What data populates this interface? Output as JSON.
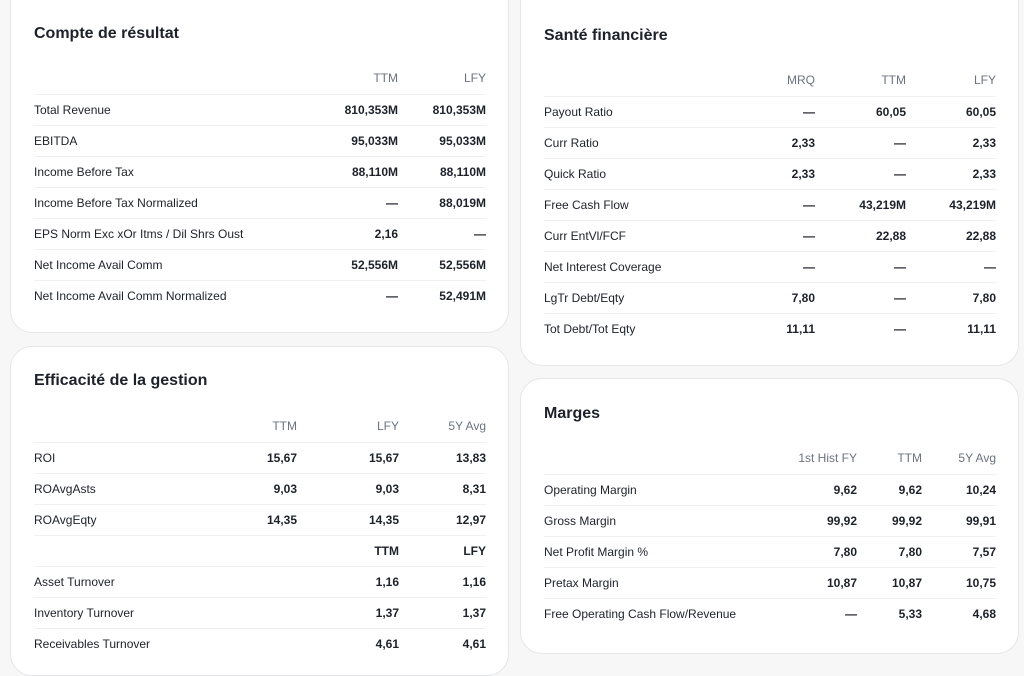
{
  "income": {
    "title": "Compte de résultat",
    "columns": [
      "TTM",
      "LFY"
    ],
    "rows": [
      {
        "label": "Total Revenue",
        "values": [
          "810,353M",
          "810,353M"
        ]
      },
      {
        "label": "EBITDA",
        "values": [
          "95,033M",
          "95,033M"
        ]
      },
      {
        "label": "Income Before Tax",
        "values": [
          "88,110M",
          "88,110M"
        ]
      },
      {
        "label": "Income Before Tax Normalized",
        "values": [
          "—",
          "88,019M"
        ]
      },
      {
        "label": "EPS Norm Exc xOr Itms / Dil Shrs Oust",
        "values": [
          "2,16",
          "—"
        ]
      },
      {
        "label": "Net Income Avail Comm",
        "values": [
          "52,556M",
          "52,556M"
        ]
      },
      {
        "label": "Net Income Avail Comm Normalized",
        "values": [
          "—",
          "52,491M"
        ]
      }
    ]
  },
  "health": {
    "title": "Santé financière",
    "columns": [
      "MRQ",
      "TTM",
      "LFY"
    ],
    "rows": [
      {
        "label": "Payout Ratio",
        "values": [
          "—",
          "60,05",
          "60,05"
        ]
      },
      {
        "label": "Curr Ratio",
        "values": [
          "2,33",
          "—",
          "2,33"
        ]
      },
      {
        "label": "Quick Ratio",
        "values": [
          "2,33",
          "—",
          "2,33"
        ]
      },
      {
        "label": "Free Cash Flow",
        "values": [
          "—",
          "43,219M",
          "43,219M"
        ]
      },
      {
        "label": "Curr EntVl/FCF",
        "values": [
          "—",
          "22,88",
          "22,88"
        ]
      },
      {
        "label": "Net Interest Coverage",
        "values": [
          "—",
          "—",
          "—"
        ]
      },
      {
        "label": "LgTr Debt/Eqty",
        "values": [
          "7,80",
          "—",
          "7,80"
        ]
      },
      {
        "label": "Tot Debt/Tot Eqty",
        "values": [
          "11,11",
          "—",
          "11,11"
        ]
      }
    ]
  },
  "efficiency": {
    "title": "Efficacité de la gestion",
    "columns": [
      "TTM",
      "LFY",
      "5Y Avg"
    ],
    "rows": [
      {
        "label": "ROI",
        "values": [
          "15,67",
          "15,67",
          "13,83"
        ]
      },
      {
        "label": "ROAvgAsts",
        "values": [
          "9,03",
          "9,03",
          "8,31"
        ]
      },
      {
        "label": "ROAvgEqty",
        "values": [
          "14,35",
          "14,35",
          "12,97"
        ]
      }
    ],
    "sub_columns": [
      "TTM",
      "LFY"
    ],
    "sub_rows": [
      {
        "label": "Asset Turnover",
        "values": [
          "1,16",
          "1,16"
        ]
      },
      {
        "label": "Inventory Turnover",
        "values": [
          "1,37",
          "1,37"
        ]
      },
      {
        "label": "Receivables Turnover",
        "values": [
          "4,61",
          "4,61"
        ]
      }
    ]
  },
  "margins": {
    "title": "Marges",
    "columns": [
      "1st Hist FY",
      "TTM",
      "5Y Avg"
    ],
    "rows": [
      {
        "label": "Operating Margin",
        "values": [
          "9,62",
          "9,62",
          "10,24"
        ]
      },
      {
        "label": "Gross Margin",
        "values": [
          "99,92",
          "99,92",
          "99,91"
        ]
      },
      {
        "label": "Net Profit Margin %",
        "values": [
          "7,80",
          "7,80",
          "7,57"
        ]
      },
      {
        "label": "Pretax Margin",
        "values": [
          "10,87",
          "10,87",
          "10,75"
        ]
      },
      {
        "label": "Free Operating Cash Flow/Revenue",
        "values": [
          "—",
          "5,33",
          "4,68"
        ]
      }
    ]
  }
}
